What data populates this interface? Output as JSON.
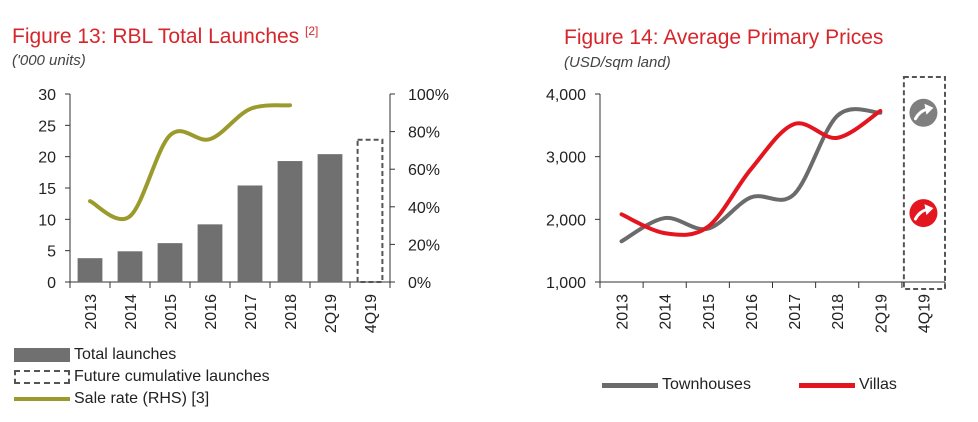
{
  "chart_data": [
    {
      "type": "bar",
      "title": "Figure 13: RBL Total Launches",
      "title_ref": "[2]",
      "subtitle": "('000 units)",
      "categories": [
        "2013",
        "2014",
        "2015",
        "2016",
        "2017",
        "2018",
        "2Q19",
        "4Q19"
      ],
      "series": [
        {
          "name": "Total launches",
          "kind": "bar",
          "color": "#707070",
          "values": [
            3.8,
            4.9,
            6.2,
            9.2,
            15.4,
            19.3,
            20.4,
            null
          ]
        },
        {
          "name": "Future cumulative launches",
          "kind": "dashed-bar",
          "color": "#555555",
          "values": [
            null,
            null,
            null,
            null,
            null,
            null,
            null,
            22.7
          ]
        },
        {
          "name": "Sale rate (RHS) [3]",
          "kind": "line",
          "axis": "right",
          "color": "#9b9a2c",
          "values": [
            0.43,
            0.35,
            0.78,
            0.76,
            0.92,
            0.94,
            null,
            null
          ]
        }
      ],
      "ylim": [
        0,
        30
      ],
      "yticks": [
        "0",
        "5",
        "10",
        "15",
        "20",
        "25",
        "30"
      ],
      "y2lim": [
        0,
        1
      ],
      "y2ticks": [
        "0%",
        "20%",
        "40%",
        "60%",
        "80%",
        "100%"
      ],
      "xlabel": "",
      "ylabel": "",
      "grid": false,
      "legend": "bottom-left"
    },
    {
      "type": "line",
      "title": "Figure 14:  Average Primary Prices",
      "subtitle": "(USD/sqm land)",
      "categories": [
        "2013",
        "2014",
        "2015",
        "2016",
        "2017",
        "2018",
        "2Q19",
        "4Q19"
      ],
      "series": [
        {
          "name": "Townhouses",
          "color": "#6b6b6b",
          "values": [
            1650,
            2020,
            1850,
            2350,
            2400,
            3650,
            3700,
            null
          ]
        },
        {
          "name": "Villas",
          "color": "#e3161f",
          "values": [
            2080,
            1780,
            1880,
            2800,
            3520,
            3300,
            3730,
            null
          ]
        }
      ],
      "outlook_icons": [
        {
          "series": "Townhouses",
          "direction": "up",
          "color": "#7f7f7f",
          "value": 3700
        },
        {
          "series": "Villas",
          "direction": "up",
          "color": "#e3161f",
          "value": 2100
        }
      ],
      "ylim": [
        1000,
        4000
      ],
      "yticks": [
        "1,000",
        "2,000",
        "3,000",
        "4,000"
      ],
      "xlabel": "",
      "ylabel": "",
      "grid": false,
      "legend": "bottom"
    }
  ]
}
